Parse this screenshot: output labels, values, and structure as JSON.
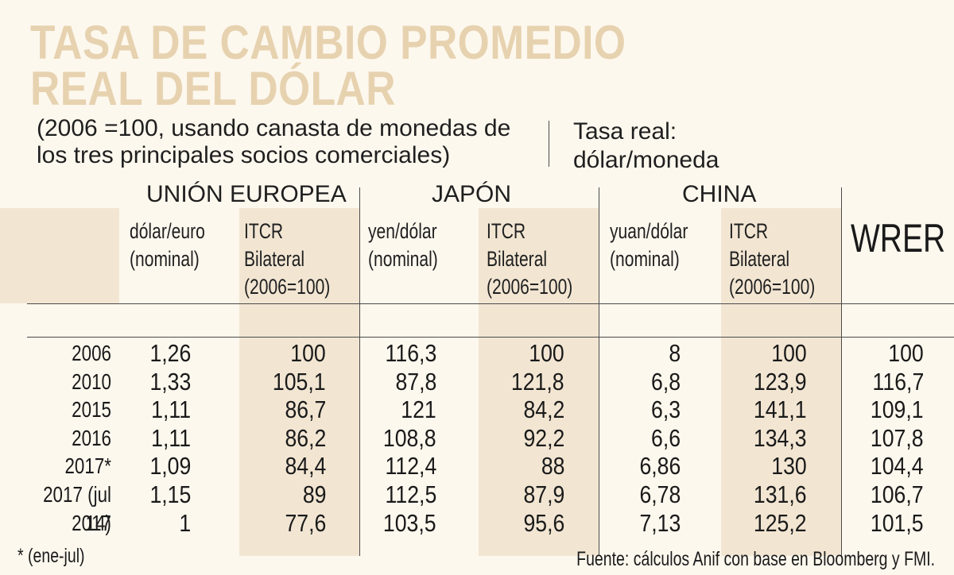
{
  "title": {
    "line1": "TASA DE CAMBIO PROMEDIO",
    "line2": "REAL DEL DÓLAR"
  },
  "subtitle": {
    "line1": "(2006 =100, usando canasta de monedas de",
    "line2": "los tres principales socios comerciales)"
  },
  "side_label": {
    "line1": "Tasa real:",
    "line2": "dólar/moneda"
  },
  "groups": [
    "UNIÓN EUROPEA",
    "JAPÓN",
    "CHINA"
  ],
  "wrer_label": "WRER",
  "columns": [
    {
      "line1": "dólar/euro",
      "line2": "(nominal)",
      "line3": ""
    },
    {
      "line1": "ITCR",
      "line2": "Bilateral",
      "line3": "(2006=100)"
    },
    {
      "line1": "yen/dólar",
      "line2": "(nominal)",
      "line3": ""
    },
    {
      "line1": "ITCR",
      "line2": "Bilateral",
      "line3": "(2006=100)"
    },
    {
      "line1": "yuan/dólar",
      "line2": "(nominal)",
      "line3": ""
    },
    {
      "line1": "ITCR",
      "line2": "Bilateral",
      "line3": "(2006=100)"
    }
  ],
  "rows": [
    {
      "year": "2006",
      "values": [
        "1,26",
        "100",
        "116,3",
        "100",
        "8",
        "100",
        "100"
      ]
    },
    {
      "year": "2010",
      "values": [
        "1,33",
        "105,1",
        "87,8",
        "121,8",
        "6,8",
        "123,9",
        "116,7"
      ]
    },
    {
      "year": "2015",
      "values": [
        "1,11",
        "86,7",
        "121",
        "84,2",
        "6,3",
        "141,1",
        "109,1"
      ]
    },
    {
      "year": "2016",
      "values": [
        "1,11",
        "86,2",
        "108,8",
        "92,2",
        "6,6",
        "134,3",
        "107,8"
      ]
    },
    {
      "year": "2017*",
      "values": [
        "1,09",
        "84,4",
        "112,4",
        "88",
        "6,86",
        "130",
        "104,4"
      ]
    },
    {
      "year": "2017 (jul 14)",
      "values": [
        "1,15",
        "89",
        "112,5",
        "87,9",
        "6,78",
        "131,6",
        "106,7"
      ]
    },
    {
      "year": "2017",
      "values": [
        "1",
        "77,6",
        "103,5",
        "95,6",
        "7,13",
        "125,2",
        "101,5"
      ]
    }
  ],
  "footnote": "* (ene-jul)",
  "source": "Fuente: cálculos Anif con base en Bloomberg y FMI."
}
